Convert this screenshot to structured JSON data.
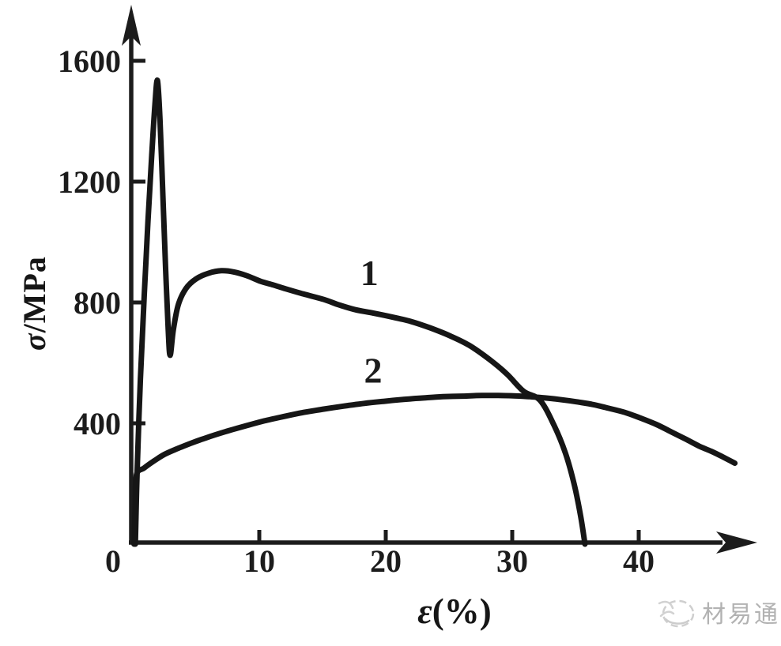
{
  "page": {
    "background_color": "#ffffff",
    "ink_color": "#161616"
  },
  "chart_data": {
    "type": "line",
    "title": "",
    "xlabel": "ε(%)",
    "ylabel": "σ/MPa",
    "xlabel_symbol": "ε",
    "xlabel_unit": "(%)",
    "ylabel_symbol": "σ",
    "ylabel_unit": "/MPa",
    "xlim": [
      0,
      49
    ],
    "ylim": [
      0,
      1780
    ],
    "x_ticks": [
      0,
      10,
      20,
      30,
      40
    ],
    "y_ticks": [
      400,
      800,
      1200,
      1600
    ],
    "grid": false,
    "legend_position": "none",
    "axis_color": "#1c1c1c",
    "curve_color": "#161616",
    "series": [
      {
        "name": "1",
        "label": "1",
        "label_pos": [
          18.7,
          858
        ],
        "points": [
          [
            0.2,
            0
          ],
          [
            0.35,
            250
          ],
          [
            0.6,
            545
          ],
          [
            0.9,
            820
          ],
          [
            1.2,
            1070
          ],
          [
            1.5,
            1290
          ],
          [
            1.75,
            1455
          ],
          [
            1.95,
            1535
          ],
          [
            2.15,
            1405
          ],
          [
            2.4,
            1130
          ],
          [
            2.6,
            905
          ],
          [
            2.8,
            710
          ],
          [
            2.95,
            625
          ],
          [
            3.2,
            708
          ],
          [
            3.6,
            793
          ],
          [
            4.2,
            846
          ],
          [
            5.0,
            878
          ],
          [
            6.0,
            897
          ],
          [
            7.0,
            905
          ],
          [
            8.0,
            901
          ],
          [
            9.0,
            889
          ],
          [
            10.1,
            870
          ],
          [
            11.1,
            858
          ],
          [
            12.1,
            845
          ],
          [
            13.5,
            828
          ],
          [
            15.1,
            810
          ],
          [
            16.3,
            792
          ],
          [
            17.6,
            776
          ],
          [
            19.0,
            765
          ],
          [
            20.5,
            752
          ],
          [
            22.0,
            737
          ],
          [
            23.5,
            716
          ],
          [
            25.0,
            691
          ],
          [
            26.6,
            658
          ],
          [
            28.3,
            608
          ],
          [
            29.6,
            562
          ],
          [
            30.9,
            506
          ],
          [
            32.2,
            476
          ],
          [
            33.3,
            394
          ],
          [
            34.2,
            302
          ],
          [
            34.9,
            198
          ],
          [
            35.4,
            95
          ],
          [
            35.75,
            0
          ]
        ]
      },
      {
        "name": "2",
        "label": "2",
        "label_pos": [
          19.0,
          534
        ],
        "points": [
          [
            0.1,
            0
          ],
          [
            0.18,
            115
          ],
          [
            0.28,
            228
          ],
          [
            0.9,
            252
          ],
          [
            1.7,
            276
          ],
          [
            2.5,
            297
          ],
          [
            3.4,
            314
          ],
          [
            4.6,
            334
          ],
          [
            5.8,
            352
          ],
          [
            7.3,
            372
          ],
          [
            8.9,
            391
          ],
          [
            10.4,
            408
          ],
          [
            12.0,
            423
          ],
          [
            13.5,
            436
          ],
          [
            15.1,
            447
          ],
          [
            16.7,
            457
          ],
          [
            18.3,
            466
          ],
          [
            19.9,
            473
          ],
          [
            21.4,
            479
          ],
          [
            23.0,
            484
          ],
          [
            24.5,
            488
          ],
          [
            26.1,
            490
          ],
          [
            27.6,
            492
          ],
          [
            28.9,
            492
          ],
          [
            30.1,
            491
          ],
          [
            31.4,
            488
          ],
          [
            32.6,
            484
          ],
          [
            33.9,
            478
          ],
          [
            35.1,
            471
          ],
          [
            36.4,
            462
          ],
          [
            37.6,
            450
          ],
          [
            38.9,
            436
          ],
          [
            40.1,
            418
          ],
          [
            41.4,
            396
          ],
          [
            42.6,
            371
          ],
          [
            43.7,
            348
          ],
          [
            44.8,
            324
          ],
          [
            45.7,
            308
          ],
          [
            46.5,
            292
          ],
          [
            47.1,
            279
          ],
          [
            47.6,
            268
          ]
        ]
      }
    ]
  },
  "watermark": {
    "text": "材易通",
    "logo": "sketch-globe-icon",
    "color": "#b2b2b2"
  }
}
